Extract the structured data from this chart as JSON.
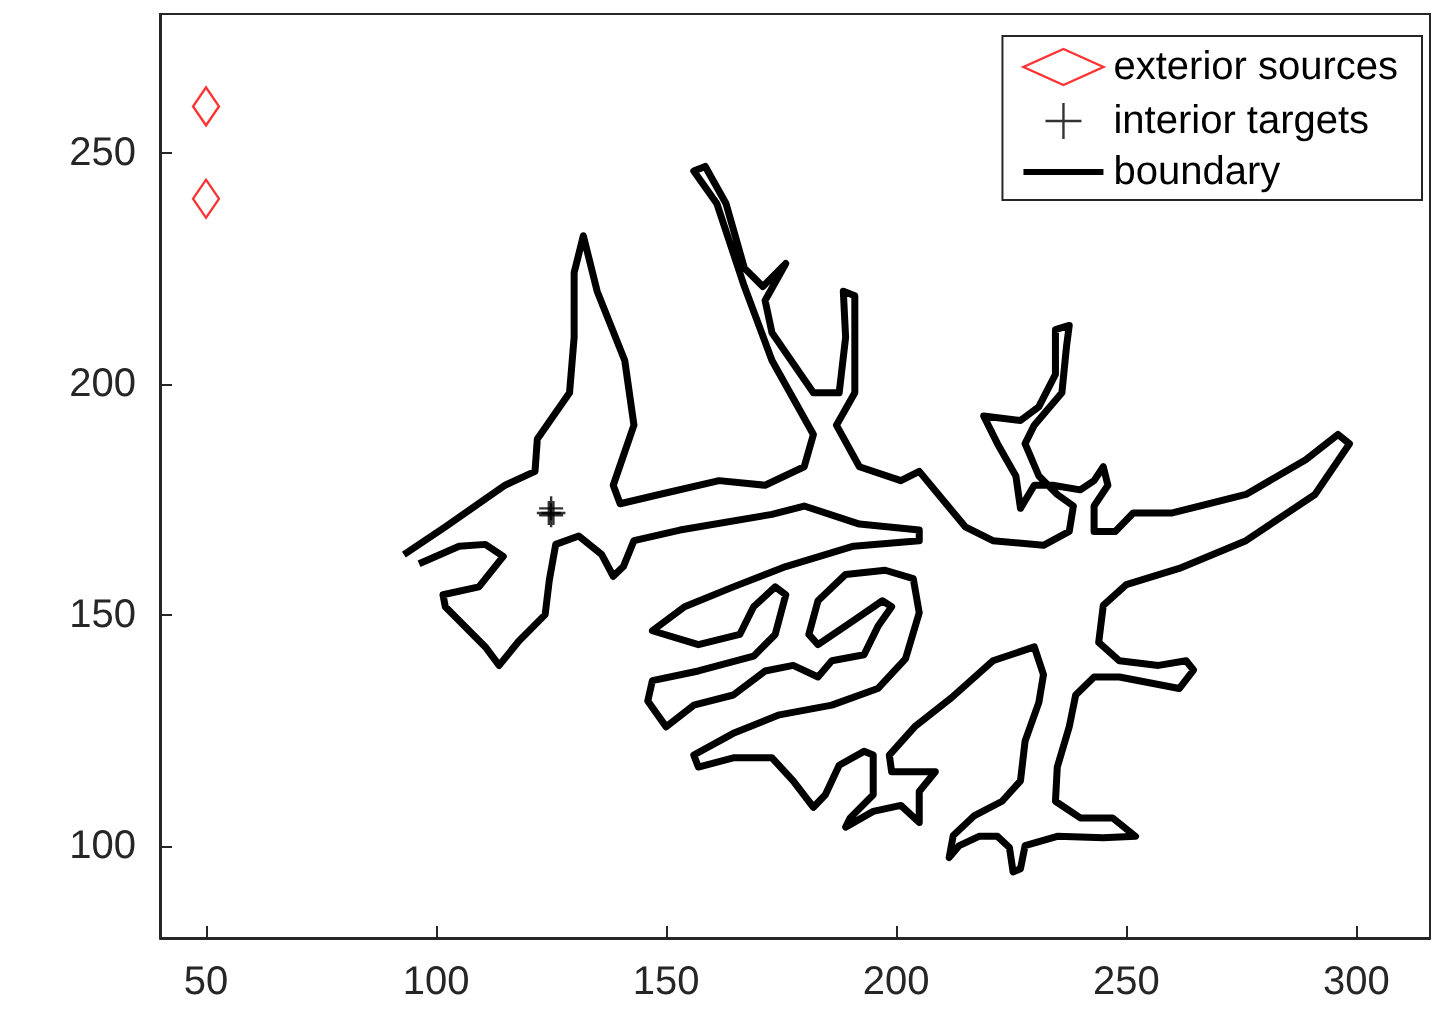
{
  "chart_data": {
    "type": "line",
    "xlim": [
      40,
      316
    ],
    "ylim": [
      80,
      280
    ],
    "xticks": [
      50,
      100,
      150,
      200,
      250,
      300
    ],
    "yticks": [
      100,
      150,
      200,
      250
    ],
    "grid": false,
    "legend": "top right",
    "series": [
      {
        "name": "exterior sources",
        "type": "scatter",
        "marker": "diamond",
        "color": "#ff0000",
        "x": [
          50,
          50
        ],
        "values": [
          260,
          240
        ]
      },
      {
        "name": "interior targets",
        "type": "scatter",
        "marker": "cross",
        "color": "#000000",
        "x": [
          124.5,
          125.5,
          125,
          125
        ],
        "values": [
          172,
          172,
          173,
          171.5
        ]
      },
      {
        "name": "boundary",
        "marker": "none",
        "color": "#000000",
        "x": [
          93,
          102,
          115,
          121.5,
          122,
          129,
          130,
          130,
          132,
          135,
          141,
          143,
          138.5,
          140,
          148.5,
          161.5,
          171.5,
          180,
          182,
          173,
          167,
          161,
          156,
          158.5,
          163,
          167,
          171,
          176,
          171.5,
          173,
          182,
          187.6,
          189,
          188.5,
          191,
          191,
          191,
          187,
          192,
          201,
          205,
          215,
          221,
          232,
          237.6,
          238.5,
          235,
          231,
          228,
          230,
          236,
          237,
          237.6,
          234.6,
          234.6,
          231,
          227,
          219,
          222,
          226,
          227,
          230,
          234,
          240,
          243,
          245,
          246,
          243,
          243,
          247.6,
          251.5,
          260,
          276,
          289,
          296,
          298.5,
          291,
          276,
          261.5,
          250,
          245,
          244,
          248.5,
          257,
          263,
          264.6,
          261.5,
          248.5,
          243,
          239,
          237.6,
          235,
          234.6,
          240,
          247,
          252,
          245,
          235,
          228,
          227,
          225.4,
          224.6,
          222,
          218,
          213.7,
          211.5,
          212.4,
          217,
          223,
          227,
          228,
          231,
          232,
          230,
          221,
          212,
          204,
          198.5,
          199,
          208.5,
          205,
          205,
          201,
          195,
          189,
          190,
          195,
          195,
          193,
          187.6,
          184.6,
          182,
          177.6,
          173,
          164.6,
          157,
          156,
          164.6,
          174.6,
          186,
          196,
          202,
          205,
          203.7,
          197.6,
          189,
          183,
          181,
          183,
          190.7,
          197,
          199,
          196,
          193,
          186,
          183,
          177.6,
          171.5,
          164.6,
          156,
          150,
          146,
          147,
          157,
          169,
          173.7,
          176,
          173.7,
          169,
          166,
          157,
          147,
          154,
          164.6,
          176,
          190.7,
          205,
          205,
          192,
          180,
          173,
          153,
          143,
          140.7,
          138.5,
          136,
          131,
          126,
          124.6,
          123.7,
          118,
          113.7,
          110.7,
          102,
          101.5,
          109.3,
          114.6,
          110.7,
          105,
          96.3
        ],
        "values": [
          163,
          169,
          178,
          181,
          188,
          198,
          210,
          224,
          232,
          220,
          205,
          191,
          178,
          174,
          176,
          179,
          178,
          182,
          189,
          205,
          221,
          239,
          246,
          247,
          239,
          225,
          221,
          226,
          218,
          211,
          198,
          198,
          210,
          220,
          219,
          210,
          198,
          191,
          182,
          179,
          181,
          169,
          166,
          165,
          168,
          173.5,
          176,
          180,
          187,
          191,
          198,
          208,
          212.6,
          211.7,
          202,
          195,
          192,
          193,
          187,
          180,
          173,
          178,
          178,
          177,
          179,
          182,
          178,
          173.5,
          168,
          168,
          172,
          172,
          176,
          183.5,
          189,
          187,
          176,
          166,
          160,
          156.5,
          152,
          144,
          140,
          139,
          140,
          138,
          134,
          136.5,
          136.5,
          132.6,
          125.7,
          117,
          109.6,
          106,
          106,
          102,
          101.7,
          102,
          100,
          95,
          94.3,
          99.6,
          102,
          102,
          100,
          97.4,
          102.2,
          106.5,
          109.6,
          114,
          122.6,
          131,
          137,
          143,
          140,
          132,
          125.7,
          119.6,
          116,
          116,
          111.7,
          105,
          108.7,
          107.4,
          104,
          106,
          111,
          119.6,
          120.4,
          117.4,
          111,
          108.3,
          114,
          119,
          119,
          117,
          119.6,
          124.3,
          128.3,
          130.4,
          134,
          140.4,
          150.4,
          157.8,
          159.6,
          158.7,
          153,
          145.7,
          143.5,
          148.7,
          153,
          151.7,
          147.4,
          141.3,
          140,
          136.5,
          139,
          137.8,
          132.6,
          130.4,
          125.7,
          131.3,
          135.7,
          137.8,
          141,
          145.7,
          154.3,
          156,
          151.7,
          145.7,
          143.5,
          146.5,
          151.7,
          156,
          160.4,
          164.8,
          166,
          168.3,
          169.6,
          173.5,
          171.7,
          168.3,
          166,
          160.4,
          158.3,
          163,
          167,
          165.2,
          157.4,
          150,
          144.3,
          139,
          143,
          151.7,
          154.3,
          156,
          162.6,
          165.2,
          164.8,
          161
        ]
      }
    ]
  }
}
